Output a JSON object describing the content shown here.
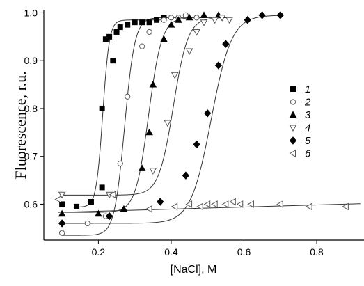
{
  "chart_data": {
    "type": "scatter",
    "title": "",
    "xlabel": "[NaCl], M",
    "ylabel": "Fluorescence, r.u.",
    "xlim": [
      0.05,
      0.93
    ],
    "ylim": [
      0.525,
      1.005
    ],
    "xticks": [
      {
        "value": 0.2,
        "label": "0.2"
      },
      {
        "value": 0.4,
        "label": "0.4"
      },
      {
        "value": 0.6,
        "label": "0.6"
      },
      {
        "value": 0.8,
        "label": "0.8"
      }
    ],
    "yticks": [
      {
        "value": 0.6,
        "label": "0.6"
      },
      {
        "value": 0.7,
        "label": "0.7"
      },
      {
        "value": 0.8,
        "label": "0.8"
      },
      {
        "value": 0.9,
        "label": "0.9"
      },
      {
        "value": 1.0,
        "label": "1.0"
      }
    ],
    "grid": false,
    "legend_position": "right",
    "series": [
      {
        "name": "1",
        "marker": "square-filled",
        "points": [
          [
            0.1,
            0.6
          ],
          [
            0.14,
            0.595
          ],
          [
            0.18,
            0.605
          ],
          [
            0.21,
            0.635
          ],
          [
            0.21,
            0.8
          ],
          [
            0.24,
            0.9
          ],
          [
            0.22,
            0.945
          ],
          [
            0.23,
            0.95
          ],
          [
            0.25,
            0.96
          ],
          [
            0.26,
            0.97
          ],
          [
            0.28,
            0.975
          ],
          [
            0.3,
            0.98
          ],
          [
            0.32,
            0.98
          ],
          [
            0.34,
            0.98
          ],
          [
            0.36,
            0.985
          ],
          [
            0.38,
            0.99
          ]
        ],
        "fit": {
          "low": 0.594,
          "high": 0.985,
          "mid": 0.212,
          "width": 0.009
        }
      },
      {
        "name": "2",
        "marker": "circle-open",
        "points": [
          [
            0.1,
            0.54
          ],
          [
            0.17,
            0.56
          ],
          [
            0.22,
            0.575
          ],
          [
            0.26,
            0.685
          ],
          [
            0.28,
            0.825
          ],
          [
            0.32,
            0.93
          ],
          [
            0.34,
            0.96
          ],
          [
            0.38,
            0.985
          ],
          [
            0.4,
            0.99
          ],
          [
            0.42,
            0.99
          ],
          [
            0.44,
            0.995
          ],
          [
            0.47,
            0.99
          ]
        ],
        "fit": {
          "low": 0.535,
          "high": 0.99,
          "mid": 0.272,
          "width": 0.014
        }
      },
      {
        "name": "3",
        "marker": "triangle-up-filled",
        "points": [
          [
            0.1,
            0.58
          ],
          [
            0.2,
            0.58
          ],
          [
            0.27,
            0.59
          ],
          [
            0.32,
            0.675
          ],
          [
            0.34,
            0.75
          ],
          [
            0.35,
            0.85
          ],
          [
            0.38,
            0.945
          ],
          [
            0.4,
            0.975
          ],
          [
            0.42,
            0.985
          ],
          [
            0.45,
            0.99
          ],
          [
            0.49,
            0.995
          ],
          [
            0.53,
            0.995
          ]
        ],
        "fit": {
          "low": 0.583,
          "high": 0.99,
          "mid": 0.338,
          "width": 0.018
        }
      },
      {
        "name": "4",
        "marker": "triangle-down-open",
        "points": [
          [
            0.1,
            0.62
          ],
          [
            0.23,
            0.62
          ],
          [
            0.35,
            0.67
          ],
          [
            0.39,
            0.77
          ],
          [
            0.41,
            0.87
          ],
          [
            0.45,
            0.92
          ],
          [
            0.47,
            0.96
          ],
          [
            0.49,
            0.98
          ],
          [
            0.52,
            0.985
          ],
          [
            0.54,
            0.99
          ],
          [
            0.56,
            0.985
          ]
        ],
        "fit": {
          "low": 0.619,
          "high": 0.99,
          "mid": 0.406,
          "width": 0.02
        }
      },
      {
        "name": "5",
        "marker": "diamond-filled",
        "points": [
          [
            0.1,
            0.56
          ],
          [
            0.23,
            0.575
          ],
          [
            0.37,
            0.605
          ],
          [
            0.44,
            0.66
          ],
          [
            0.47,
            0.725
          ],
          [
            0.5,
            0.79
          ],
          [
            0.53,
            0.89
          ],
          [
            0.55,
            0.935
          ],
          [
            0.61,
            0.985
          ],
          [
            0.65,
            0.995
          ],
          [
            0.7,
            0.995
          ]
        ],
        "fit": {
          "low": 0.56,
          "high": 0.995,
          "mid": 0.51,
          "width": 0.028
        }
      },
      {
        "name": "6",
        "marker": "triangle-left-open",
        "points": [
          [
            0.09,
            0.61
          ],
          [
            0.24,
            0.62
          ],
          [
            0.34,
            0.59
          ],
          [
            0.41,
            0.595
          ],
          [
            0.45,
            0.6
          ],
          [
            0.48,
            0.595
          ],
          [
            0.5,
            0.6
          ],
          [
            0.52,
            0.6
          ],
          [
            0.55,
            0.6
          ],
          [
            0.57,
            0.605
          ],
          [
            0.59,
            0.6
          ],
          [
            0.62,
            0.6
          ],
          [
            0.7,
            0.6
          ],
          [
            0.78,
            0.595
          ],
          [
            0.88,
            0.595
          ]
        ],
        "fit": {
          "line": [
            [
              0.09,
              0.583
            ],
            [
              0.92,
              0.601
            ]
          ]
        }
      }
    ]
  }
}
